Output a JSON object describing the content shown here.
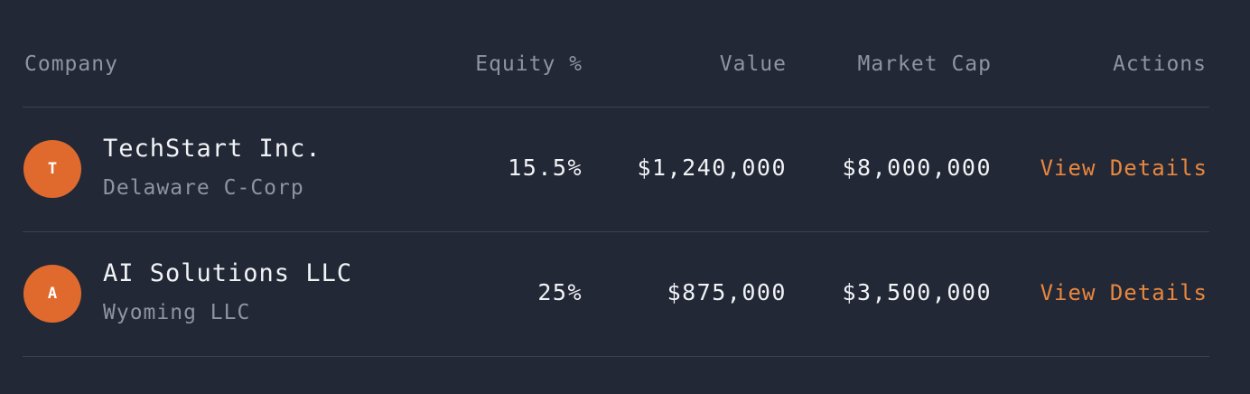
{
  "table": {
    "headers": {
      "company": "Company",
      "equity": "Equity %",
      "value": "Value",
      "market_cap": "Market Cap",
      "actions": "Actions"
    },
    "rows": [
      {
        "initial": "T",
        "name": "TechStart Inc.",
        "entity": "Delaware C-Corp",
        "equity": "15.5%",
        "value": "$1,240,000",
        "market_cap": "$8,000,000",
        "action": "View Details"
      },
      {
        "initial": "A",
        "name": "AI Solutions LLC",
        "entity": "Wyoming LLC",
        "equity": "25%",
        "value": "$875,000",
        "market_cap": "$3,500,000",
        "action": "View Details"
      }
    ]
  },
  "colors": {
    "background": "#222836",
    "accent": "#e06a2e",
    "link": "#e8873e"
  }
}
